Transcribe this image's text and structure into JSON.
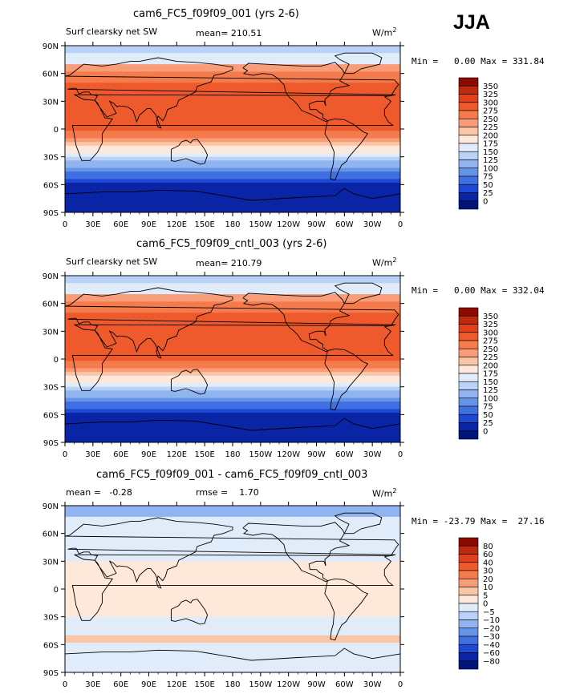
{
  "season": "JJA",
  "unit_label": "W/m",
  "unit_sup": "2",
  "chart_data": [
    {
      "type": "heatmap",
      "title": "cam6_FC5_f09f09_001 (yrs 2-6)",
      "variable": "Surf clearsky net SW",
      "stat_text": "mean= 210.51",
      "min_text": "Min =   0.00 Max = 331.84",
      "min": 0.0,
      "max": 331.84,
      "x_ticks": [
        "0",
        "30E",
        "60E",
        "90E",
        "120E",
        "150E",
        "180",
        "150W",
        "120W",
        "90W",
        "60W",
        "30W",
        "0"
      ],
      "y_ticks": [
        "90N",
        "60N",
        "30N",
        "0",
        "30S",
        "60S",
        "90S"
      ],
      "levels": [
        "350",
        "325",
        "300",
        "275",
        "250",
        "225",
        "200",
        "175",
        "150",
        "125",
        "100",
        "75",
        "50",
        "25",
        "0"
      ],
      "colors": [
        "#8c0a00",
        "#bd2a0f",
        "#e0401c",
        "#ef5a2c",
        "#f57a4c",
        "#f99c78",
        "#fbc5a8",
        "#fde8d9",
        "#e1ecfb",
        "#bad2f7",
        "#8fb4f0",
        "#6593e8",
        "#3f6fe0",
        "#1e47d4",
        "#0a24a6",
        "#00157a"
      ]
    },
    {
      "type": "heatmap",
      "title": "cam6_FC5_f09f09_cntl_003 (yrs 2-6)",
      "variable": "Surf clearsky net SW",
      "stat_text": "mean= 210.79",
      "min_text": "Min =   0.00 Max = 332.04",
      "min": 0.0,
      "max": 332.04,
      "x_ticks": [
        "0",
        "30E",
        "60E",
        "90E",
        "120E",
        "150E",
        "180",
        "150W",
        "120W",
        "90W",
        "60W",
        "30W",
        "0"
      ],
      "y_ticks": [
        "90N",
        "60N",
        "30N",
        "0",
        "30S",
        "60S",
        "90S"
      ],
      "levels": [
        "350",
        "325",
        "300",
        "275",
        "250",
        "225",
        "200",
        "175",
        "150",
        "125",
        "100",
        "75",
        "50",
        "25",
        "0"
      ],
      "colors": [
        "#8c0a00",
        "#bd2a0f",
        "#e0401c",
        "#ef5a2c",
        "#f57a4c",
        "#f99c78",
        "#fbc5a8",
        "#fde8d9",
        "#e1ecfb",
        "#bad2f7",
        "#8fb4f0",
        "#6593e8",
        "#3f6fe0",
        "#1e47d4",
        "#0a24a6",
        "#00157a"
      ]
    },
    {
      "type": "heatmap",
      "title": "cam6_FC5_f09f09_001 - cam6_FC5_f09f09_cntl_003",
      "variable": "mean =   -0.28",
      "stat_text": "rmse =    1.70",
      "min_text": "Min = -23.79 Max =  27.16",
      "min": -23.79,
      "max": 27.16,
      "x_ticks": [
        "0",
        "30E",
        "60E",
        "90E",
        "120E",
        "150E",
        "180",
        "150W",
        "120W",
        "90W",
        "60W",
        "30W",
        "0"
      ],
      "y_ticks": [
        "90N",
        "60N",
        "30N",
        "0",
        "30S",
        "60S",
        "90S"
      ],
      "levels": [
        "80",
        "60",
        "40",
        "30",
        "20",
        "10",
        "5",
        "0",
        "−5",
        "−10",
        "−20",
        "−30",
        "−40",
        "−60",
        "−80"
      ],
      "colors": [
        "#8c0a00",
        "#bd2a0f",
        "#e0401c",
        "#ef5a2c",
        "#f57a4c",
        "#f99c78",
        "#fbc5a8",
        "#fde8d9",
        "#e1ecfb",
        "#bad2f7",
        "#8fb4f0",
        "#6593e8",
        "#3f6fe0",
        "#1e47d4",
        "#0a24a6",
        "#00157a"
      ]
    }
  ]
}
